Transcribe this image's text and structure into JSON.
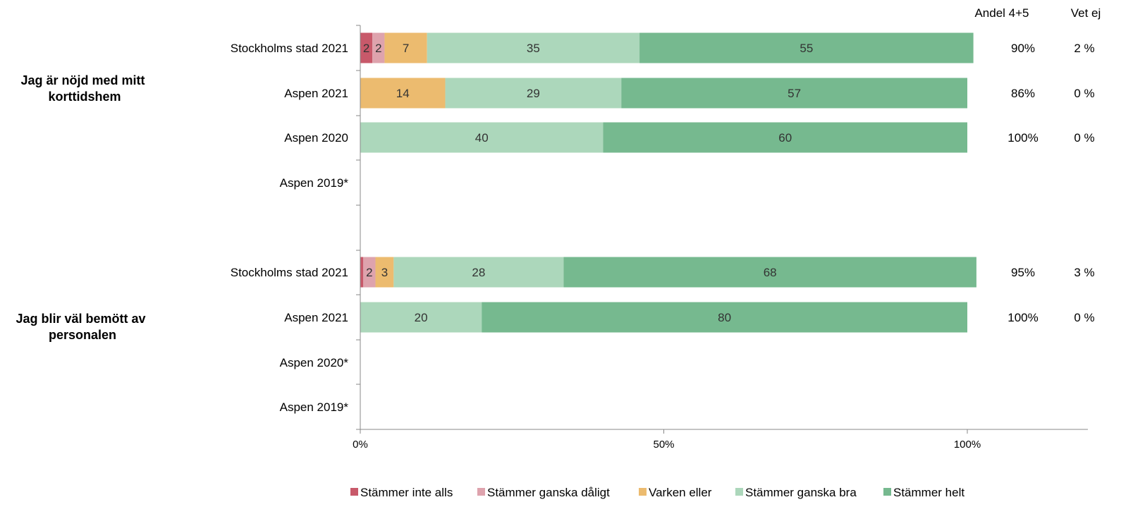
{
  "chart_data": {
    "type": "bar",
    "orientation": "horizontal",
    "stacked": true,
    "xlim": [
      0,
      100
    ],
    "x_ticks": [
      "0%",
      "50%",
      "100%"
    ],
    "side_headers": [
      "Andel 4+5",
      "Vet ej"
    ],
    "legend": {
      "placement": "bottom"
    },
    "series": [
      {
        "name": "Stämmer inte alls",
        "color": "#c8596a"
      },
      {
        "name": "Stämmer ganska dåligt",
        "color": "#dea3ad"
      },
      {
        "name": "Varken eller",
        "color": "#ecbb6f"
      },
      {
        "name": "Stämmer ganska bra",
        "color": "#acd7bb"
      },
      {
        "name": "Stämmer helt",
        "color": "#76b98f"
      }
    ],
    "groups": [
      {
        "label": "Jag är nöjd med mitt korttidshem",
        "rows": [
          {
            "label": "Stockholms stad 2021",
            "values": [
              2,
              2,
              7,
              35,
              55
            ],
            "andel": "90%",
            "vet_ej": "2 %"
          },
          {
            "label": "Aspen 2021",
            "values": [
              0,
              0,
              14,
              29,
              57
            ],
            "andel": "86%",
            "vet_ej": "0 %"
          },
          {
            "label": "Aspen 2020",
            "values": [
              0,
              0,
              0,
              40,
              60
            ],
            "andel": "100%",
            "vet_ej": "0 %"
          },
          {
            "label": "Aspen 2019*",
            "values": [
              0,
              0,
              0,
              0,
              0
            ],
            "andel": "",
            "vet_ej": ""
          }
        ]
      },
      {
        "label": "Jag blir väl bemött av personalen",
        "rows": [
          {
            "label": "Stockholms stad 2021",
            "values": [
              0.5,
              2,
              3,
              28,
              68
            ],
            "andel": "95%",
            "vet_ej": "3 %"
          },
          {
            "label": "Aspen 2021",
            "values": [
              0,
              0,
              0,
              20,
              80
            ],
            "andel": "100%",
            "vet_ej": "0 %"
          },
          {
            "label": "Aspen 2020*",
            "values": [
              0,
              0,
              0,
              0,
              0
            ],
            "andel": "",
            "vet_ej": ""
          },
          {
            "label": "Aspen 2019*",
            "values": [
              0,
              0,
              0,
              0,
              0
            ],
            "andel": "",
            "vet_ej": ""
          }
        ]
      }
    ]
  }
}
